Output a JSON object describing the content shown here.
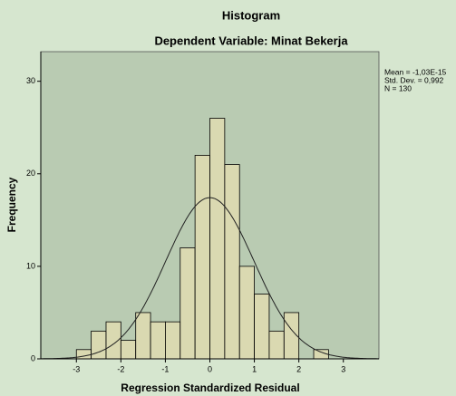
{
  "chart_data": {
    "type": "histogram",
    "title": "Histogram",
    "subtitle": "Dependent Variable: Minat Bekerja",
    "x_label": "Regression Standardized Residual",
    "y_label": "Frequency",
    "bins": [
      -3,
      -2.6667,
      -2.3333,
      -2,
      -1.6667,
      -1.3333,
      -1,
      -0.6667,
      -0.3333,
      0,
      0.3333,
      0.6667,
      1,
      1.3333,
      1.6667,
      2,
      2.3333,
      2.6667
    ],
    "counts": [
      1,
      3,
      4,
      2,
      5,
      4,
      4,
      12,
      22,
      26,
      21,
      10,
      7,
      3,
      5,
      0,
      1
    ],
    "color": "#e6ddb0",
    "xlim": [
      -3.8,
      3.8
    ],
    "ylim": [
      0,
      33.2
    ],
    "xticks": [
      -3,
      -2,
      -1,
      0,
      1,
      2,
      3
    ],
    "yticks": [
      0,
      10,
      20,
      30
    ],
    "stats": [
      {
        "value": -1.03e-15,
        "label": "Mean = -1,03E-15"
      },
      {
        "value": 0.992,
        "label": "Std. Dev. = 0,992"
      },
      {
        "value": 130,
        "label": "N = 130"
      }
    ]
  }
}
